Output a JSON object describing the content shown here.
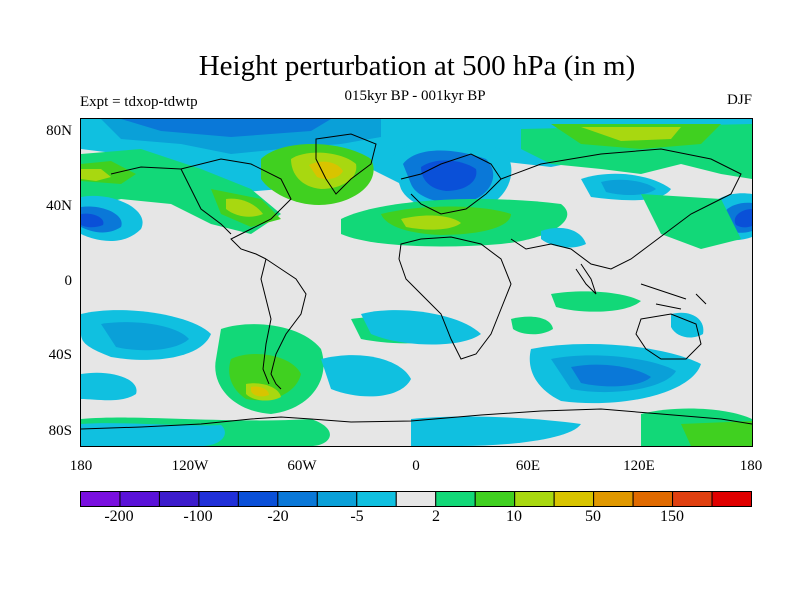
{
  "title": "Height perturbation at 500 hPa (in m)",
  "subtitle": "015kyr BP - 001kyr BP",
  "experiment": "Expt = tdxop-tdwtp",
  "season": "DJF",
  "lat_labels": [
    "80N",
    "40N",
    "0",
    "40S",
    "80S"
  ],
  "lon_labels": [
    "180",
    "120W",
    "60W",
    "0",
    "60E",
    "120E",
    "180"
  ],
  "colorbar": {
    "labels": [
      "-200",
      "-100",
      "-20",
      "-5",
      "2",
      "10",
      "50",
      "150"
    ],
    "colors": [
      "#7a10e0",
      "#5a12d8",
      "#3c1ccc",
      "#2030d8",
      "#0a50d8",
      "#0a78d8",
      "#0aa0d8",
      "#10c0e0",
      "#e6e6e6",
      "#12d878",
      "#40d020",
      "#a8d810",
      "#d8c400",
      "#e09800",
      "#e06a00",
      "#e04010",
      "#e00000"
    ]
  }
}
